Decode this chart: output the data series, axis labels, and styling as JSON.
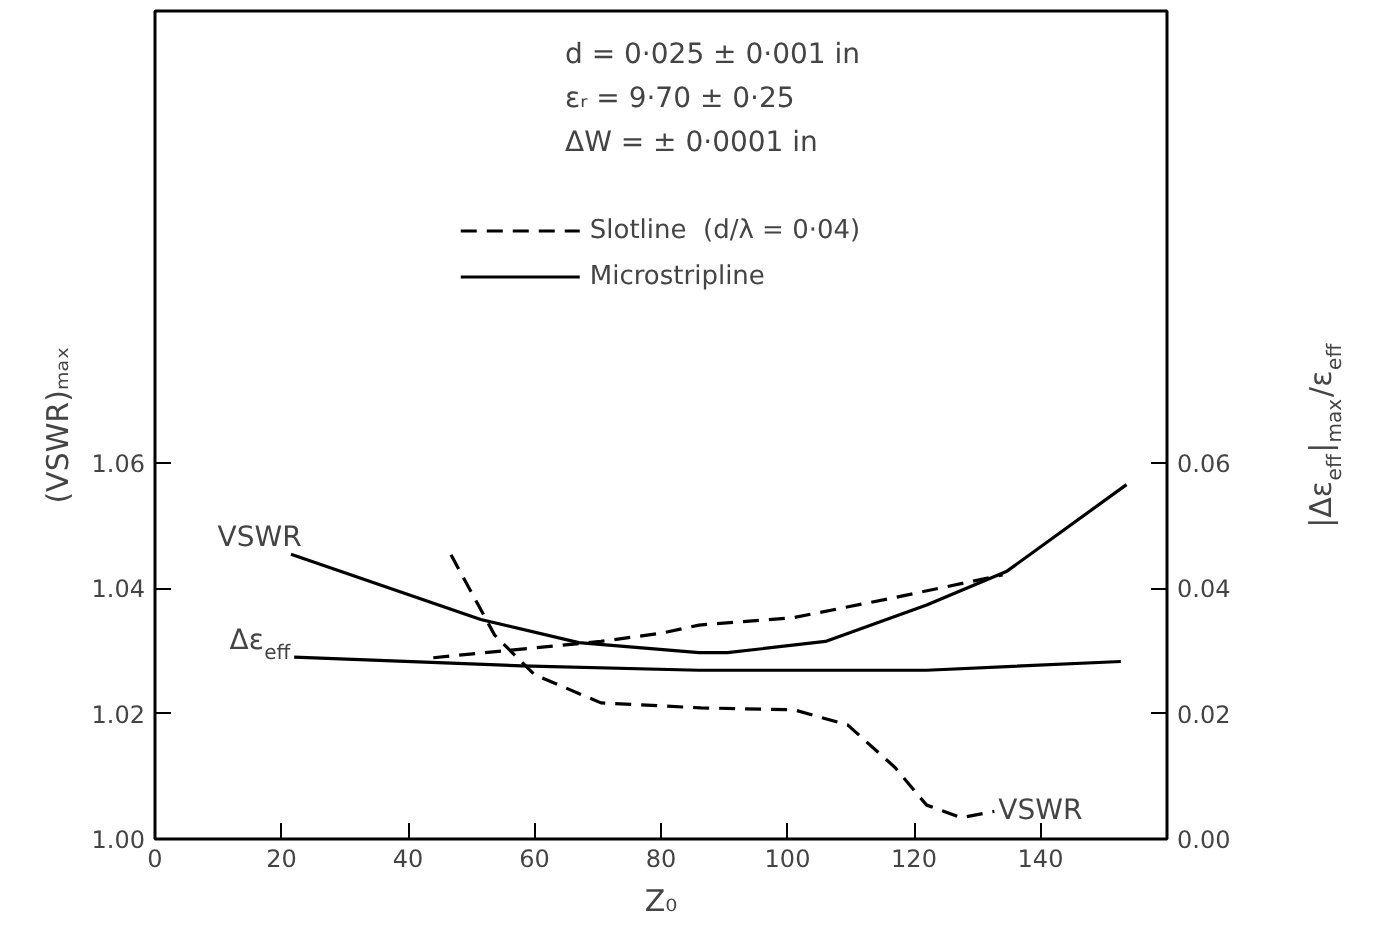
{
  "chart_data": {
    "type": "line",
    "xlabel": "Z₀",
    "ylabel": "(VSWR)ₘₐₓ",
    "y2label": "|Δε$_{eff}$|$_{max}$/ε$_{eff}$",
    "annotations": [
      "d  = 0·025 ± 0·001 in",
      "εᵣ = 9·70 ± 0·25",
      "ΔW = ± 0·0001 in",
      {
        "text": "VSWR",
        "x": 21.5,
        "y": 1.0454
      },
      {
        "text": "Δε$_{eff}$",
        "x": 22,
        "y": 1.029
      },
      {
        "text": "VSWR",
        "x": 132.7,
        "y": 1.0044
      }
    ],
    "series": [
      {
        "name": "Slotline  (d/λ = 0·04)",
        "color": "#000000",
        "line_style": "dashed",
        "axis": "y2",
        "x": [
          44,
          70.5,
          80,
          86,
          101,
          117,
          134
        ],
        "values": [
          0.0289,
          0.0315,
          0.0328,
          0.0341,
          0.0353,
          0.0385,
          0.0421
        ]
      },
      {
        "name": "Microstripline",
        "color": "#000000",
        "line_style": "solid",
        "x": [
          21.5,
          51.5,
          67,
          86,
          90.5,
          106,
          122,
          134.7,
          153.6
        ],
        "values": [
          1.0454,
          1.035,
          1.0313,
          1.0297,
          1.0297,
          1.0315,
          1.0373,
          1.0427,
          1.0565
        ]
      },
      {
        "color": "#000000",
        "line_style": "solid",
        "axis": "y2",
        "x": [
          22,
          58,
          86,
          122,
          152.7
        ],
        "values": [
          0.029,
          0.0276,
          0.0269,
          0.0269,
          0.0283
        ]
      },
      {
        "color": "#000000",
        "line_style": "dashed",
        "x": [
          46.8,
          53.7,
          60,
          70.5,
          86.3,
          101,
          109.5,
          117,
          122,
          127.5,
          132.7
        ],
        "values": [
          1.0453,
          1.0325,
          1.0262,
          1.0217,
          1.0209,
          1.0206,
          1.0182,
          1.0114,
          1.0054,
          1.0034,
          1.0044
        ]
      }
    ],
    "xlim": [
      0,
      160
    ],
    "xticks": [
      0,
      20,
      40,
      60,
      80,
      100,
      120,
      140
    ],
    "ylim": [
      1.0,
      1.132
    ],
    "yticks": [
      {
        "value": 1.0,
        "label": "1.00"
      },
      {
        "value": 1.02,
        "label": "1.02"
      },
      {
        "value": 1.04,
        "label": "1.04"
      },
      {
        "value": 1.06,
        "label": "1.06"
      }
    ],
    "y2lim": [
      0.0,
      0.132
    ],
    "y2ticks": [
      {
        "value": 0.0,
        "label": "0.00"
      },
      {
        "value": 0.02,
        "label": "0.02"
      },
      {
        "value": 0.04,
        "label": "0.04"
      },
      {
        "value": 0.06,
        "label": "0.06"
      }
    ],
    "grid": false,
    "legend": "top"
  }
}
